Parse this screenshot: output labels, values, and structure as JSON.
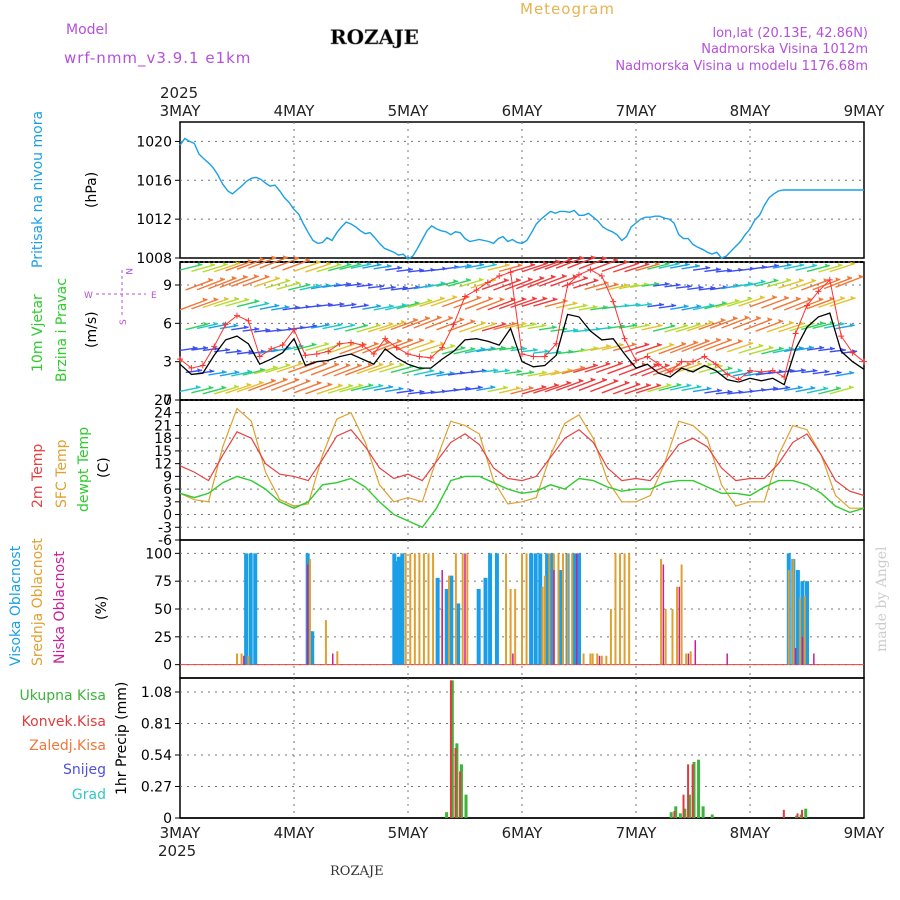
{
  "header": {
    "model_label": "Model",
    "model_name": "wrf-nmm_v3.9.1 e1km",
    "station": "ROZAJE",
    "product": "Meteogram",
    "lonlat": "lon,lat (20.13E, 42.86N)",
    "elevation": "Nadmorska Visina 1012m",
    "model_elevation": "Nadmorska Visina u modelu 1176.68m",
    "footer_station": "ROZAJE",
    "credit": "made by Angel"
  },
  "colors": {
    "pressure": "#1aa0e6",
    "temp2m": "#e84040",
    "sfc_temp": "#e0a030",
    "dewpt": "#2ecc2e",
    "cloud_high": "#1a9ee8",
    "cloud_mid": "#e0a030",
    "cloud_low": "#c81e96",
    "precip_total": "#3cb43c",
    "precip_conv": "#e03c3c",
    "precip_frz": "#f0783c",
    "precip_snow": "#5050dc",
    "precip_graupel": "#30c8c8",
    "model_purple": "#b450dc",
    "gold": "#e6b450",
    "wind_speed": "#000000",
    "gust": "#ff3030"
  },
  "time_axis": {
    "year": "2025",
    "labels": [
      "3MAY",
      "4MAY",
      "5MAY",
      "6MAY",
      "7MAY",
      "8MAY",
      "9MAY"
    ]
  },
  "compass": {
    "w": "W",
    "e": "E",
    "n": "N",
    "s": "S"
  },
  "chart_data": [
    {
      "type": "line",
      "panel": "pressure",
      "ylabel": "Pritisak na nivou mora",
      "unit": "(hPa)",
      "ylim": [
        1008,
        1022
      ],
      "yticks": [
        "1008",
        "1012",
        "1016",
        "1020"
      ],
      "x_days": [
        0,
        0.042,
        0.083,
        0.125,
        0.167,
        0.21,
        0.25,
        0.29,
        0.33,
        0.375,
        0.42,
        0.46,
        0.5,
        0.54,
        0.583,
        0.625,
        0.667,
        0.71,
        0.75,
        0.79,
        0.833,
        0.875,
        0.917,
        0.958,
        1.0,
        1.042,
        1.083,
        1.125,
        1.167,
        1.21,
        1.25,
        1.29,
        1.333,
        1.375,
        1.417,
        1.458,
        1.5,
        1.542,
        1.583,
        1.625,
        1.667,
        1.708,
        1.75,
        1.792,
        1.833,
        1.875,
        1.917,
        1.958,
        2.0,
        2.042,
        2.083,
        2.125,
        2.167,
        2.208,
        2.25,
        2.292,
        2.333,
        2.375,
        2.417,
        2.458,
        2.5,
        2.542,
        2.583,
        2.625,
        2.667,
        2.708,
        2.75,
        2.792,
        2.833,
        2.875,
        2.917,
        2.958,
        3.0,
        3.042,
        3.083,
        3.125,
        3.167,
        3.208,
        3.25,
        3.292,
        3.333,
        3.375,
        3.417,
        3.458,
        3.5,
        3.542,
        3.583,
        3.625,
        3.667,
        3.708,
        3.75,
        3.792,
        3.833,
        3.875,
        3.917,
        3.958,
        4.0,
        4.042,
        4.083,
        4.125,
        4.167,
        4.208,
        4.25,
        4.292,
        4.333,
        4.375,
        4.417,
        4.458,
        4.5,
        4.542,
        4.583,
        4.625,
        4.667,
        4.708,
        4.75,
        4.792,
        4.833,
        4.875,
        4.917,
        4.958,
        5.0,
        5.042,
        5.083,
        5.125,
        5.167,
        5.208,
        5.25,
        5.292,
        5.333,
        5.375,
        5.417,
        5.458,
        5.5,
        5.542,
        5.583,
        5.625,
        5.667,
        5.708,
        5.75,
        5.792,
        5.833,
        5.875,
        5.917,
        5.958,
        6.0
      ],
      "series": [
        {
          "values": [
            1019.6,
            1020.3,
            1020.0,
            1019.8,
            1018.7,
            1018.2,
            1017.8,
            1017.3,
            1016.6,
            1015.6,
            1014.9,
            1014.6,
            1015.0,
            1015.4,
            1015.9,
            1016.2,
            1016.3,
            1016.1,
            1015.7,
            1015.4,
            1015.5,
            1014.9,
            1014.2,
            1013.7,
            1013.0,
            1012.5,
            1011.5,
            1010.6,
            1009.8,
            1009.5,
            1009.6,
            1010.1,
            1009.8,
            1010.6,
            1011.2,
            1011.7,
            1011.5,
            1011.2,
            1010.8,
            1010.5,
            1010.6,
            1010.1,
            1009.5,
            1009.0,
            1008.8,
            1008.6,
            1008.3,
            1008.4,
            1007.9,
            1008.2,
            1009.0,
            1009.9,
            1010.8,
            1011.3,
            1011.0,
            1010.8,
            1010.7,
            1010.4,
            1010.7,
            1010.6,
            1010.0,
            1009.7,
            1009.8,
            1009.9,
            1009.8,
            1009.7,
            1009.5,
            1010.0,
            1010.2,
            1009.7,
            1009.9,
            1009.6,
            1009.5,
            1009.8,
            1010.6,
            1011.5,
            1012.0,
            1012.4,
            1012.8,
            1012.6,
            1012.8,
            1012.8,
            1012.7,
            1012.9,
            1012.4,
            1012.4,
            1012.6,
            1012.2,
            1011.8,
            1011.2,
            1010.9,
            1010.7,
            1010.4,
            1009.8,
            1010.2,
            1011.2,
            1011.6,
            1012.0,
            1012.2,
            1012.2,
            1012.3,
            1012.3,
            1012.1,
            1012.0,
            1011.6,
            1010.4,
            1010.0,
            1010.0,
            1009.4,
            1009.1,
            1008.9,
            1008.6,
            1008.4,
            1008.6,
            1008.0,
            1008.2,
            1008.7,
            1009.2,
            1009.7,
            1010.4,
            1011.0,
            1011.9,
            1012.4,
            1013.4,
            1014.2,
            1014.6,
            1014.9,
            1015.0,
            1015.0,
            1015.0,
            1015.0,
            1015.0,
            1015.0,
            1015.0,
            1015.0,
            1015.0,
            1015.0,
            1015.0,
            1015.0,
            1015.0,
            1015.0,
            1015.0,
            1015.0,
            1015.0,
            1015.0
          ]
        }
      ]
    },
    {
      "type": "line",
      "panel": "wind",
      "ylabel": [
        "10m Vjetar",
        "Brzina i Pravac"
      ],
      "unit": "(m/s)",
      "ylim": [
        0,
        10.8
      ],
      "yticks": [
        "0",
        "3",
        "6",
        "9"
      ],
      "x_days": [
        0,
        0.1,
        0.2,
        0.3,
        0.4,
        0.5,
        0.6,
        0.7,
        0.8,
        0.9,
        1.0,
        1.1,
        1.2,
        1.3,
        1.4,
        1.5,
        1.6,
        1.7,
        1.8,
        1.9,
        2.0,
        2.1,
        2.2,
        2.3,
        2.4,
        2.5,
        2.6,
        2.7,
        2.8,
        2.9,
        3.0,
        3.1,
        3.2,
        3.3,
        3.4,
        3.5,
        3.6,
        3.7,
        3.8,
        3.9,
        4.0,
        4.1,
        4.2,
        4.3,
        4.4,
        4.5,
        4.6,
        4.7,
        4.8,
        4.9,
        5.0,
        5.1,
        5.2,
        5.3,
        5.4,
        5.5,
        5.6,
        5.7,
        5.8,
        5.9,
        6.0
      ],
      "series": [
        {
          "name": "speed",
          "values": [
            2.8,
            2.0,
            2.1,
            3.5,
            4.7,
            5.0,
            4.4,
            2.8,
            3.2,
            3.7,
            4.8,
            2.7,
            3.0,
            3.1,
            3.4,
            3.6,
            3.2,
            2.8,
            4.0,
            3.3,
            2.8,
            2.5,
            2.5,
            3.2,
            3.8,
            4.7,
            4.8,
            4.6,
            4.3,
            5.6,
            3.0,
            2.6,
            2.7,
            3.5,
            6.7,
            6.5,
            5.4,
            4.7,
            4.8,
            3.6,
            2.5,
            2.8,
            2.1,
            1.8,
            2.5,
            2.2,
            2.7,
            2.3,
            1.6,
            1.4,
            1.7,
            1.5,
            1.7,
            1.2,
            4.0,
            5.7,
            6.5,
            6.8,
            3.8,
            3.0,
            2.4
          ]
        },
        {
          "name": "gust",
          "values": [
            3.2,
            2.5,
            2.7,
            4.2,
            5.9,
            6.6,
            6.2,
            3.4,
            4.0,
            4.3,
            5.5,
            3.5,
            3.6,
            3.8,
            4.4,
            4.5,
            4.3,
            3.6,
            4.8,
            4.1,
            3.6,
            3.4,
            3.3,
            4.1,
            5.9,
            8.1,
            8.6,
            9.2,
            9.7,
            10.0,
            3.6,
            3.4,
            3.4,
            4.4,
            9.0,
            9.8,
            10.2,
            9.7,
            7.7,
            4.8,
            3.1,
            3.4,
            2.8,
            2.2,
            3.0,
            3.0,
            3.4,
            2.8,
            2.0,
            1.6,
            2.3,
            2.2,
            2.3,
            1.8,
            5.2,
            7.4,
            8.5,
            9.4,
            5.0,
            3.7,
            3.0
          ]
        }
      ]
    },
    {
      "type": "line",
      "panel": "temperature",
      "ylabel": [
        "2m Temp",
        "SFC Temp",
        "dewpt Temp"
      ],
      "unit": "(C)",
      "ylim": [
        -6,
        27
      ],
      "yticks": [
        "-6",
        "-3",
        "0",
        "3",
        "6",
        "9",
        "12",
        "15",
        "18",
        "21",
        "24",
        "27"
      ],
      "x_days": [
        0,
        0.125,
        0.25,
        0.375,
        0.5,
        0.625,
        0.75,
        0.875,
        1.0,
        1.125,
        1.25,
        1.375,
        1.5,
        1.625,
        1.75,
        1.875,
        2.0,
        2.125,
        2.25,
        2.375,
        2.5,
        2.625,
        2.75,
        2.875,
        3.0,
        3.125,
        3.25,
        3.375,
        3.5,
        3.625,
        3.75,
        3.875,
        4.0,
        4.125,
        4.25,
        4.375,
        4.5,
        4.625,
        4.75,
        4.875,
        5.0,
        5.125,
        5.25,
        5.375,
        5.5,
        5.625,
        5.75,
        5.875,
        6.0
      ],
      "series": [
        {
          "name": "2m Temp",
          "values": [
            11.5,
            10.0,
            8.0,
            14.0,
            19.5,
            18.0,
            12.0,
            9.5,
            9.0,
            8.0,
            13.0,
            18.5,
            20.0,
            16.0,
            11.0,
            8.5,
            9.5,
            8.0,
            12.5,
            17.0,
            19.0,
            16.5,
            11.0,
            8.5,
            8.0,
            9.0,
            13.5,
            18.0,
            20.0,
            17.0,
            11.0,
            8.0,
            8.5,
            8.0,
            12.0,
            16.5,
            18.0,
            16.0,
            11.0,
            8.0,
            8.5,
            8.5,
            12.0,
            17.0,
            19.0,
            14.0,
            8.0,
            5.5,
            4.5
          ]
        },
        {
          "name": "SFC Temp",
          "values": [
            5.0,
            3.5,
            3.0,
            16.0,
            25.0,
            22.0,
            10.0,
            3.5,
            2.0,
            2.5,
            14.0,
            22.5,
            24.0,
            17.0,
            7.0,
            3.0,
            4.0,
            3.0,
            13.0,
            22.0,
            21.0,
            19.0,
            8.0,
            2.5,
            3.0,
            4.0,
            14.0,
            21.5,
            23.5,
            18.0,
            8.0,
            3.0,
            3.0,
            4.5,
            12.0,
            22.0,
            21.0,
            18.0,
            7.0,
            2.0,
            3.0,
            3.0,
            14.0,
            21.0,
            20.0,
            14.0,
            4.5,
            1.5,
            1.5
          ]
        },
        {
          "name": "dewpt Temp",
          "values": [
            5.0,
            4.0,
            5.0,
            7.5,
            9.0,
            8.0,
            6.0,
            3.0,
            1.5,
            3.0,
            7.0,
            7.5,
            8.5,
            6.5,
            3.0,
            0.0,
            -1.5,
            -3.0,
            1.5,
            8.0,
            9.0,
            9.0,
            7.5,
            6.0,
            5.0,
            5.5,
            7.0,
            6.0,
            8.5,
            8.0,
            6.5,
            5.5,
            6.0,
            6.0,
            7.5,
            8.0,
            8.0,
            6.5,
            5.0,
            5.0,
            4.5,
            6.5,
            8.0,
            8.0,
            7.0,
            5.0,
            2.0,
            0.5,
            1.5
          ]
        }
      ]
    },
    {
      "type": "bar",
      "panel": "clouds",
      "ylabel": [
        "Visoka Oblacnost",
        "Srednja Oblacnost",
        "Niska Oblacnost"
      ],
      "unit": "(%)",
      "ylim": [
        0,
        100
      ],
      "yticks": [
        "0",
        "25",
        "50",
        "75",
        "100"
      ],
      "series": [
        {
          "name": "Visoka Oblacnost",
          "x_days": [
            0.58,
            0.62,
            0.66,
            1.12,
            1.14,
            1.16,
            1.88,
            1.9,
            1.92,
            1.95,
            2.26,
            2.34,
            2.38,
            2.44,
            2.62,
            2.68,
            2.72,
            2.78,
            3.08,
            3.12,
            3.16,
            3.22,
            3.26,
            3.34,
            3.4,
            3.46,
            3.5,
            5.34,
            5.38,
            5.42,
            5.46,
            5.5
          ],
          "values": [
            100,
            100,
            100,
            100,
            30,
            30,
            100,
            93,
            97,
            100,
            78,
            68,
            80,
            55,
            68,
            78,
            100,
            100,
            100,
            100,
            100,
            100,
            100,
            85,
            100,
            100,
            100,
            100,
            95,
            85,
            75,
            75
          ]
        },
        {
          "name": "Srednja Oblacnost",
          "x_days": [
            0.5,
            0.54,
            0.6,
            1.14,
            1.28,
            1.38,
            1.98,
            2.02,
            2.06,
            2.1,
            2.14,
            2.18,
            2.22,
            2.3,
            2.36,
            2.42,
            2.48,
            2.52,
            2.86,
            2.9,
            2.94,
            3.0,
            3.04,
            3.18,
            3.2,
            3.24,
            3.28,
            3.32,
            3.36,
            3.4,
            3.44,
            3.54,
            3.6,
            3.62,
            3.66,
            3.7,
            3.74,
            3.78,
            3.82,
            3.86,
            3.9,
            3.94,
            4.22,
            4.26,
            4.32,
            4.36,
            4.4,
            4.44,
            4.48,
            5.34,
            5.38,
            5.44,
            5.48
          ],
          "values": [
            10,
            10,
            8,
            95,
            40,
            12,
            100,
            100,
            100,
            100,
            100,
            100,
            100,
            50,
            80,
            100,
            100,
            100,
            100,
            68,
            68,
            100,
            100,
            70,
            80,
            100,
            100,
            100,
            100,
            100,
            100,
            10,
            10,
            10,
            10,
            8,
            8,
            50,
            100,
            100,
            100,
            100,
            95,
            50,
            50,
            70,
            90,
            10,
            12,
            85,
            95,
            60,
            62
          ]
        },
        {
          "name": "Niska Oblacnost",
          "x_days": [
            0.56,
            1.12,
            1.34,
            2.3,
            2.5,
            2.92,
            3.28,
            3.48,
            3.68,
            4.24,
            4.38,
            4.46,
            4.52,
            4.8,
            5.4,
            5.46,
            5.56
          ],
          "values": [
            8,
            90,
            10,
            85,
            100,
            10,
            85,
            100,
            8,
            90,
            70,
            10,
            22,
            10,
            15,
            25,
            10
          ]
        }
      ]
    },
    {
      "type": "bar",
      "panel": "precipitation",
      "ylabel": "1hr Precip (mm)",
      "ylim": [
        0,
        1.2
      ],
      "yticks": [
        "0",
        "0.27",
        "0.54",
        "0.81",
        "1.08"
      ],
      "legend": [
        "Ukupna Kisa",
        "Konvek.Kisa",
        "Zaledj.Kisa",
        "Snijeg",
        "Grad"
      ],
      "series": [
        {
          "name": "Ukupna Kisa",
          "x_days": [
            2.33,
            2.38,
            2.42,
            2.46,
            2.5,
            2.54,
            4.3,
            4.34,
            4.38,
            4.42,
            4.46,
            4.5,
            4.54,
            4.58,
            4.66,
            5.3,
            5.4,
            5.44,
            5.48
          ],
          "values": [
            0.05,
            1.18,
            0.64,
            0.46,
            0.2,
            0.0,
            0.05,
            0.1,
            0.04,
            0.08,
            0.2,
            0.48,
            0.5,
            0.1,
            0.03,
            0.0,
            0.02,
            0.03,
            0.08
          ]
        },
        {
          "name": "Konvek.Kisa",
          "x_days": [
            2.39,
            2.43,
            2.47,
            4.35,
            4.43,
            4.47,
            4.51,
            5.31,
            5.43,
            5.47
          ],
          "values": [
            1.18,
            0.6,
            0.4,
            0.06,
            0.2,
            0.46,
            0.46,
            0.07,
            0.04,
            0.07
          ]
        }
      ]
    }
  ]
}
